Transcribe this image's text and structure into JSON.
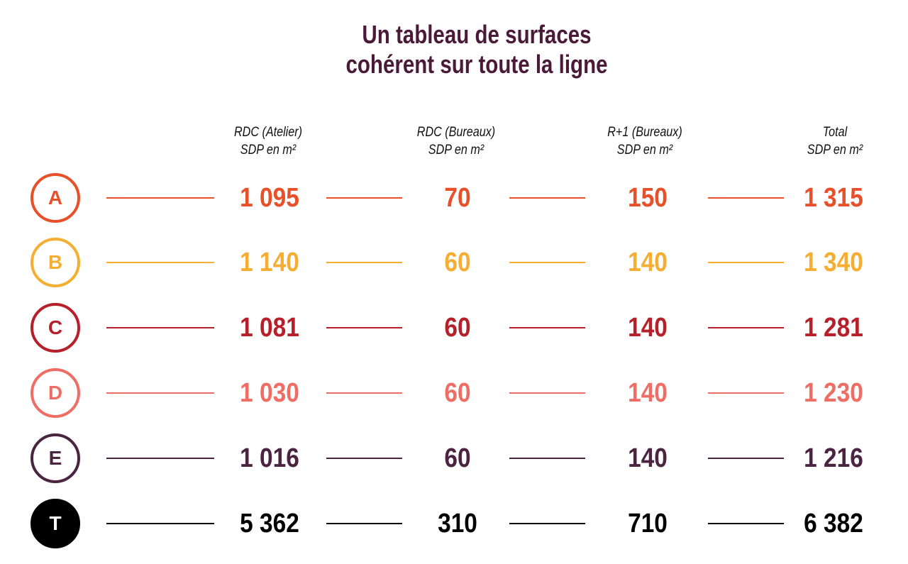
{
  "title": {
    "line1": "Un tableau de surfaces",
    "line2": "cohérent sur toute la ligne"
  },
  "columns": [
    {
      "line1": "RDC (Atelier)",
      "line2": "SDP en m²"
    },
    {
      "line1": "RDC (Bureaux)",
      "line2": "SDP en m²"
    },
    {
      "line1": "R+1 (Bureaux)",
      "line2": "SDP en m²"
    },
    {
      "line1": "Total",
      "line2": "SDP en m²"
    }
  ],
  "rows": [
    {
      "label": "A",
      "color": "#e8502a",
      "filled": false,
      "values": [
        "1 095",
        "70",
        "150",
        "1 315"
      ]
    },
    {
      "label": "B",
      "color": "#f5ae32",
      "filled": false,
      "values": [
        "1 140",
        "60",
        "140",
        "1 340"
      ]
    },
    {
      "label": "C",
      "color": "#b5202a",
      "filled": false,
      "values": [
        "1 081",
        "60",
        "140",
        "1 281"
      ]
    },
    {
      "label": "D",
      "color": "#ee6d65",
      "filled": false,
      "values": [
        "1 030",
        "60",
        "140",
        "1 230"
      ]
    },
    {
      "label": "E",
      "color": "#4a2440",
      "filled": false,
      "values": [
        "1 016",
        "60",
        "140",
        "1 216"
      ]
    },
    {
      "label": "T",
      "color": "#000000",
      "filled": true,
      "values": [
        "5 362",
        "310",
        "710",
        "6 382"
      ]
    }
  ]
}
